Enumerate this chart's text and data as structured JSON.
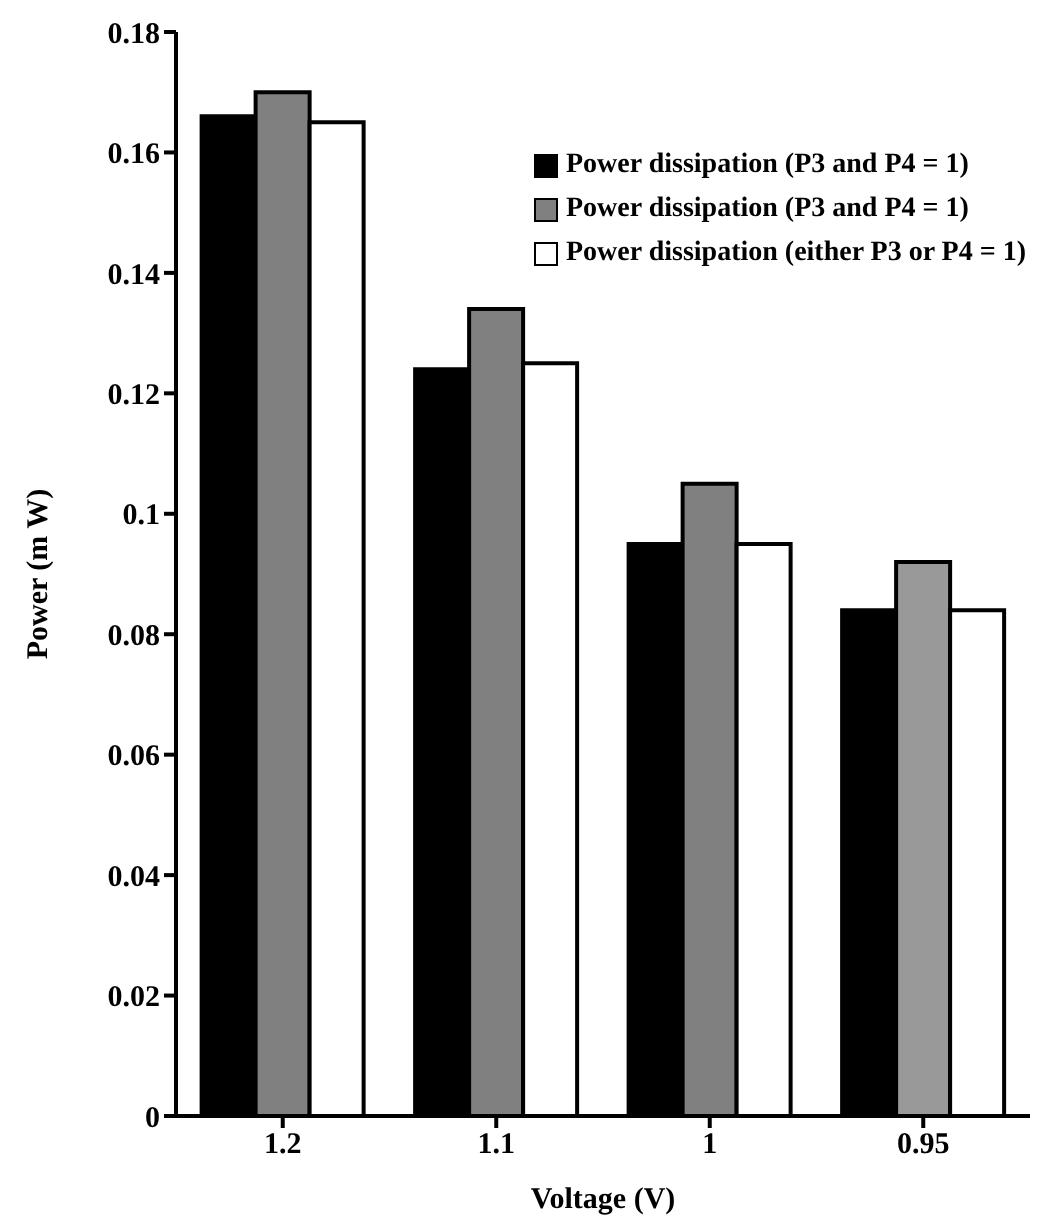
{
  "chart_data": {
    "type": "bar",
    "xlabel": "Voltage (V)",
    "ylabel": "Power (m W)",
    "categories": [
      "1.2",
      "1.1",
      "1",
      "0.95"
    ],
    "series": [
      {
        "name": "Power dissipation (P3 and P4 = 1)",
        "color": "#000000",
        "values": [
          0.166,
          0.124,
          0.095,
          0.084
        ]
      },
      {
        "name": "Power dissipation (P3 and P4 = 1)",
        "color": "#808080",
        "colors": [
          "#808080",
          "#808080",
          "#808080",
          "#999999"
        ],
        "values": [
          0.17,
          0.134,
          0.105,
          0.092
        ]
      },
      {
        "name": "Power dissipation (either P3 or P4 = 1)",
        "color": "#ffffff",
        "values": [
          0.165,
          0.125,
          0.095,
          0.084
        ]
      }
    ],
    "ylim": [
      0,
      0.18
    ],
    "yticks": [
      0,
      0.02,
      0.04,
      0.06,
      0.08,
      0.1,
      0.12,
      0.14,
      0.16,
      0.18
    ],
    "grid": false,
    "legend": "top right"
  }
}
